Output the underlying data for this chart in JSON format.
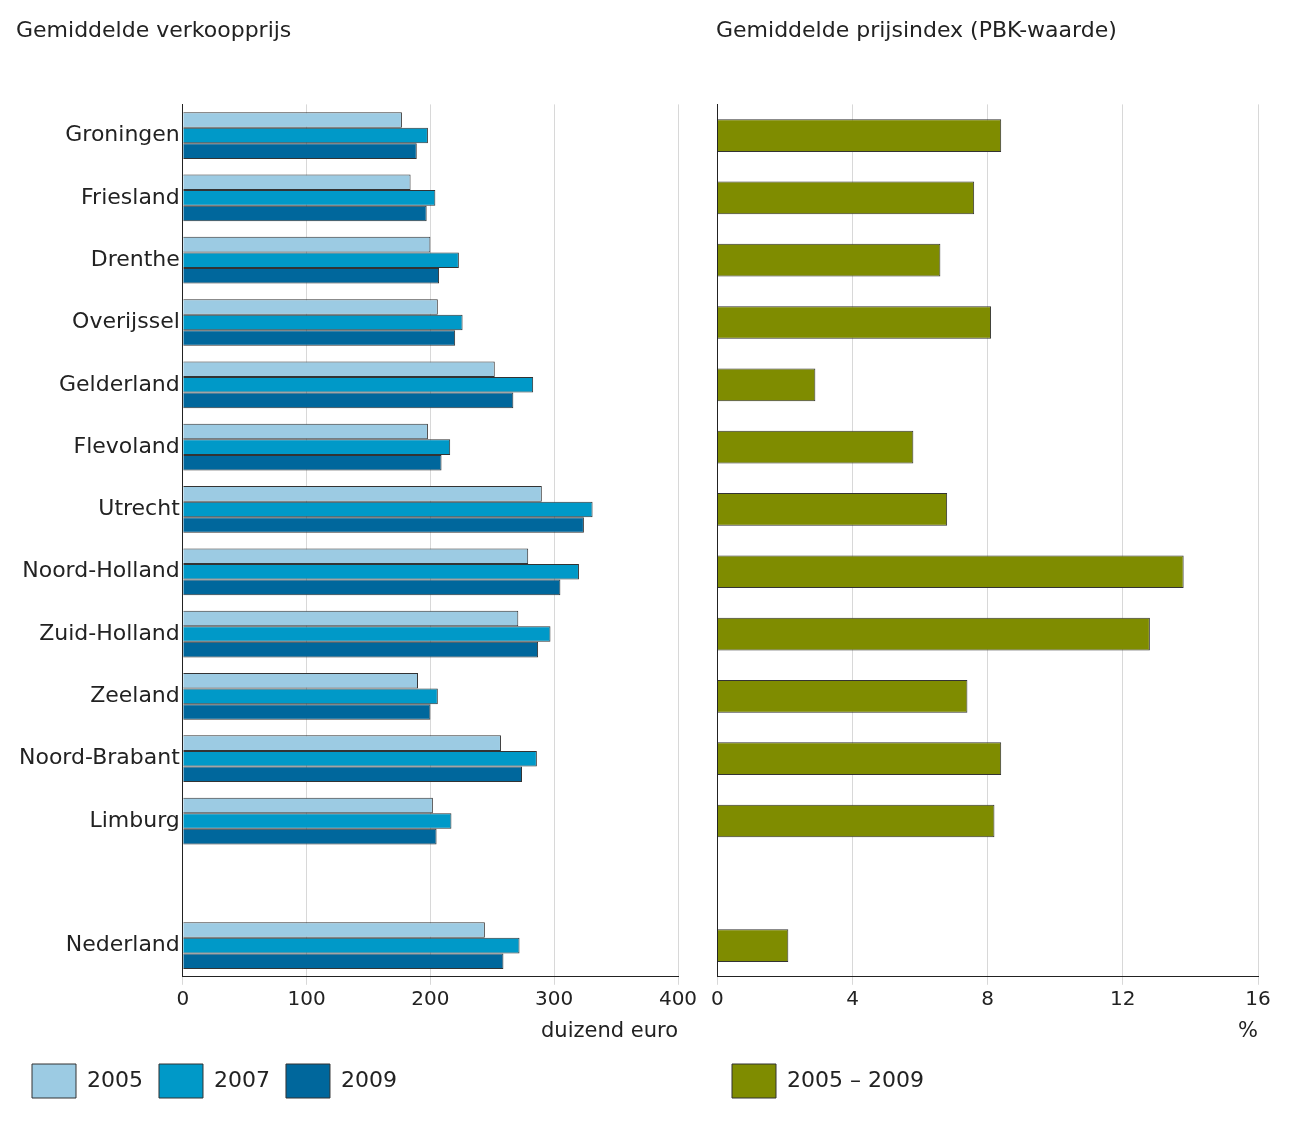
{
  "chart_data": [
    {
      "type": "bar",
      "orientation": "horizontal",
      "title": "Gemiddelde verkoopprijs",
      "xlabel": "duizend euro",
      "categories": [
        "Groningen",
        "Friesland",
        "Drenthe",
        "Overijssel",
        "Gelderland",
        "Flevoland",
        "Utrecht",
        "Noord-Holland",
        "Zuid-Holland",
        "Zeeland",
        "Noord-Brabant",
        "Limburg",
        null,
        "Nederland"
      ],
      "series": [
        {
          "name": "2005",
          "color": "#9ccbe3",
          "values": [
            177,
            184,
            200,
            206,
            252,
            198,
            290,
            279,
            271,
            190,
            257,
            202,
            null,
            244
          ]
        },
        {
          "name": "2007",
          "color": "#0099c8",
          "values": [
            198,
            204,
            223,
            226,
            283,
            216,
            331,
            320,
            297,
            206,
            286,
            217,
            null,
            272
          ]
        },
        {
          "name": "2009",
          "color": "#00679c",
          "values": [
            189,
            197,
            207,
            220,
            267,
            209,
            324,
            305,
            287,
            200,
            274,
            205,
            null,
            259
          ]
        }
      ],
      "xlim": [
        0,
        400
      ],
      "xticks": [
        0,
        100,
        200,
        300,
        400
      ],
      "grid": "x",
      "legend": "bottom left"
    },
    {
      "type": "bar",
      "orientation": "horizontal",
      "title": "Gemiddelde prijsindex (PBK-waarde)",
      "xlabel": "%",
      "categories": [
        null,
        null,
        null,
        null,
        null,
        null,
        null,
        null,
        null,
        null,
        null,
        null,
        null,
        null
      ],
      "series": [
        {
          "name": "2005 – 2009",
          "color": "#7f8c00",
          "values": [
            8.4,
            7.6,
            6.6,
            8.1,
            2.9,
            5.8,
            6.8,
            13.8,
            12.8,
            7.4,
            8.4,
            8.2,
            null,
            2.1
          ]
        }
      ],
      "xlim": [
        0,
        16
      ],
      "xticks": [
        0,
        4,
        8,
        12,
        16
      ],
      "grid": "x",
      "legend": "bottom left",
      "tick_labels": "x"
    }
  ]
}
